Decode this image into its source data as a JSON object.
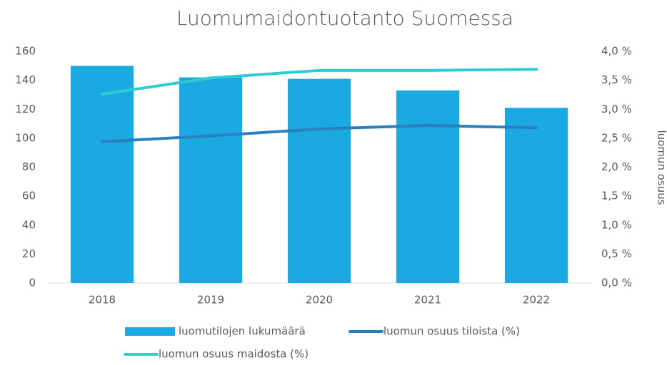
{
  "chart_data": {
    "type": "bar_line",
    "title": "Luomumaidontuotanto Suomessa",
    "y2_label": "luomun osuus",
    "categories": [
      "2018",
      "2019",
      "2020",
      "2021",
      "2022"
    ],
    "series": [
      {
        "name": "luomutilojen lukumäärä",
        "type": "bar",
        "color": "#1ba9e1",
        "values": [
          150,
          142,
          141,
          133,
          121
        ]
      },
      {
        "name": "luomun osuus tiloista (%)",
        "type": "line",
        "axis": "y2",
        "color": "#2a7fc1",
        "values": [
          2.44,
          2.54,
          2.66,
          2.72,
          2.68
        ]
      },
      {
        "name": "luomun osuus maidosta (%)",
        "type": "line",
        "axis": "y2",
        "color": "#2ecbd6",
        "values": [
          3.26,
          3.54,
          3.67,
          3.67,
          3.69
        ]
      }
    ],
    "ylim": [
      0,
      160
    ],
    "yticks": [
      0,
      20,
      40,
      60,
      80,
      100,
      120,
      140,
      160
    ],
    "y2lim": [
      0,
      4
    ],
    "y2ticks": [
      {
        "value": 0,
        "label": "0,0 %"
      },
      {
        "value": 0.5,
        "label": "0,5 %"
      },
      {
        "value": 1,
        "label": "1,0 %"
      },
      {
        "value": 1.5,
        "label": "1,5 %"
      },
      {
        "value": 2,
        "label": "2,0 %"
      },
      {
        "value": 2.5,
        "label": "2,5 %"
      },
      {
        "value": 3,
        "label": "3,0 %"
      },
      {
        "value": 3.5,
        "label": "3,5 %"
      },
      {
        "value": 4,
        "label": "4,0 %"
      }
    ]
  }
}
